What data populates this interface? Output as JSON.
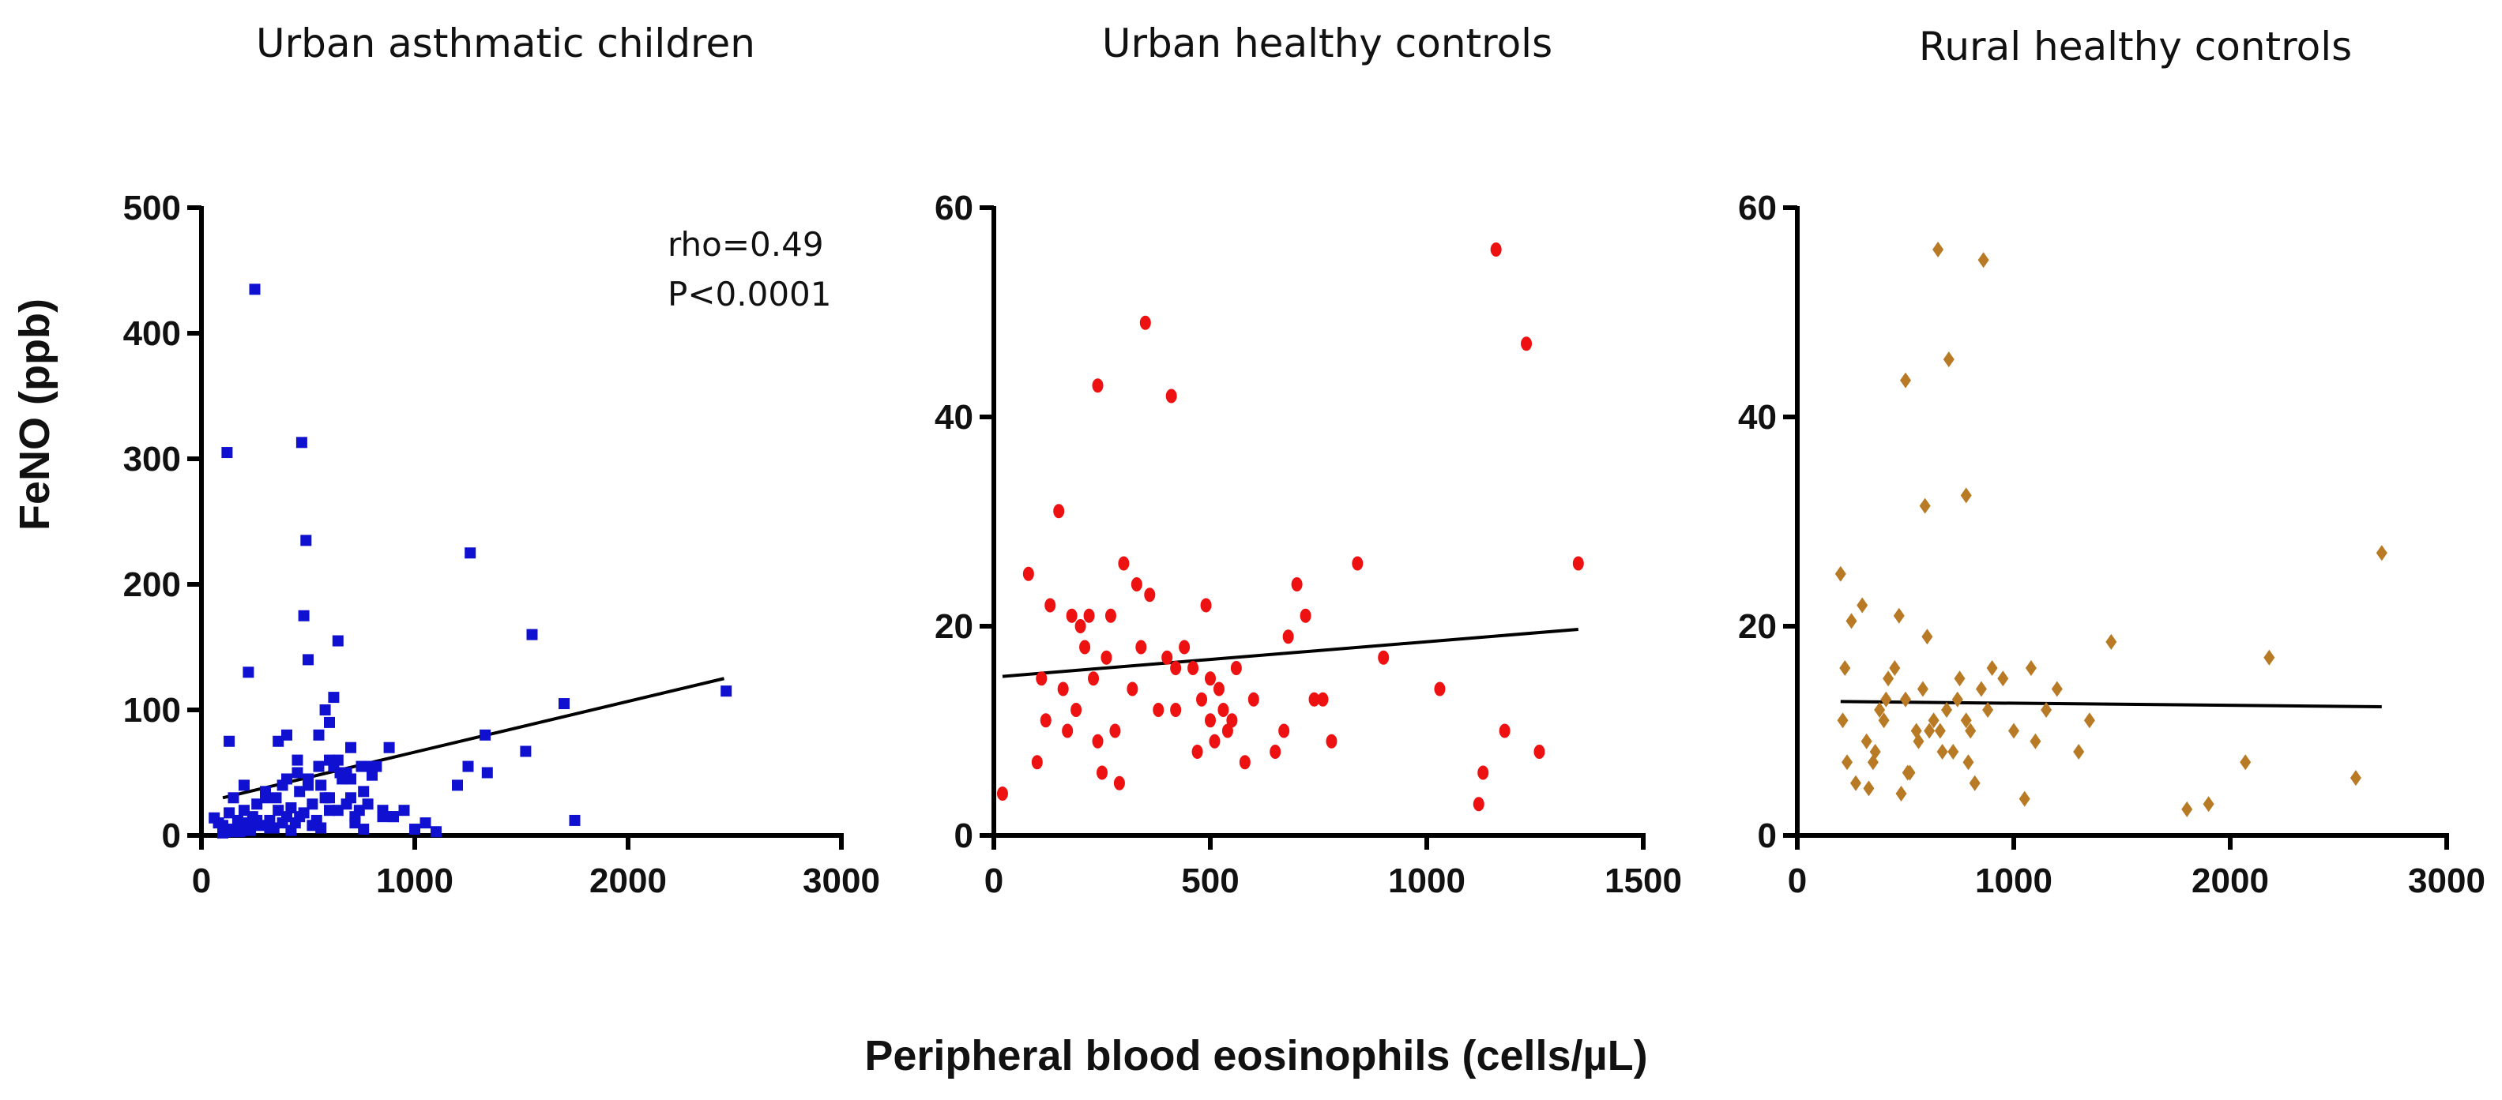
{
  "figure": {
    "ylabel": "FeNO (ppb)",
    "xlabel": "Peripheral blood eosinophils (cells/µL)"
  },
  "chart_data": [
    {
      "type": "scatter",
      "title": "Urban asthmatic children",
      "xlabel": "Peripheral blood eosinophils (cells/µL)",
      "ylabel": "FeNO (ppb)",
      "xlim": [
        0,
        3000
      ],
      "ylim": [
        0,
        500
      ],
      "xticks": [
        0,
        1000,
        2000,
        3000
      ],
      "yticks": [
        0,
        100,
        200,
        300,
        400,
        500
      ],
      "marker": "square",
      "color": "#1010d0",
      "annotations": [
        "rho=0.49",
        "P<0.0001"
      ],
      "trend_line": {
        "x": [
          100,
          2450
        ],
        "y": [
          30,
          125
        ]
      },
      "x": [
        250,
        120,
        470,
        490,
        480,
        640,
        1260,
        1550,
        1330,
        1700,
        1520,
        1250,
        1750,
        2460,
        60,
        80,
        100,
        110,
        130,
        150,
        170,
        190,
        200,
        210,
        230,
        240,
        260,
        280,
        300,
        320,
        340,
        360,
        380,
        400,
        420,
        440,
        460,
        480,
        500,
        520,
        540,
        560,
        580,
        600,
        620,
        640,
        660,
        680,
        700,
        720,
        740,
        760,
        780,
        800,
        820,
        850,
        880,
        900,
        950,
        1000,
        1050,
        1100,
        150,
        200,
        300,
        350,
        400,
        450,
        500,
        550,
        600,
        650,
        700,
        750,
        800,
        850,
        100,
        140,
        180,
        220,
        260,
        320,
        380,
        420,
        460,
        520,
        560,
        600,
        640,
        680,
        720,
        760,
        580,
        600,
        620,
        550,
        500,
        450,
        400,
        700,
        780,
        900,
        1200,
        1340,
        360,
        220,
        130
      ],
      "y": [
        435,
        305,
        313,
        235,
        175,
        155,
        225,
        160,
        80,
        105,
        67,
        55,
        12,
        115,
        14,
        10,
        8,
        5,
        18,
        3,
        12,
        7,
        20,
        10,
        4,
        15,
        25,
        8,
        30,
        12,
        6,
        20,
        40,
        15,
        22,
        10,
        35,
        18,
        45,
        25,
        12,
        40,
        30,
        20,
        55,
        60,
        45,
        50,
        30,
        15,
        20,
        35,
        25,
        48,
        55,
        15,
        70,
        15,
        20,
        5,
        10,
        3,
        30,
        40,
        35,
        30,
        45,
        50,
        40,
        55,
        60,
        50,
        45,
        55,
        50,
        20,
        2,
        5,
        3,
        8,
        12,
        6,
        10,
        4,
        15,
        8,
        6,
        30,
        20,
        25,
        10,
        5,
        100,
        90,
        110,
        80,
        140,
        60,
        80,
        70,
        55,
        15,
        40,
        50,
        75,
        130,
        75
      ]
    },
    {
      "type": "scatter",
      "title": "Urban healthy controls",
      "xlabel": "Peripheral blood eosinophils (cells/µL)",
      "ylabel": "FeNO (ppb)",
      "xlim": [
        0,
        1500
      ],
      "ylim": [
        0,
        60
      ],
      "xticks": [
        0,
        500,
        1000,
        1500
      ],
      "yticks": [
        0,
        20,
        40,
        60
      ],
      "marker": "circle",
      "color": "#ee1111",
      "trend_line": {
        "x": [
          20,
          1350
        ],
        "y": [
          15.2,
          19.7
        ]
      },
      "x": [
        20,
        80,
        100,
        110,
        120,
        130,
        150,
        160,
        170,
        180,
        190,
        200,
        210,
        220,
        230,
        240,
        250,
        260,
        270,
        280,
        290,
        300,
        320,
        330,
        340,
        350,
        360,
        380,
        400,
        410,
        420,
        440,
        460,
        480,
        490,
        500,
        510,
        520,
        530,
        540,
        560,
        580,
        650,
        670,
        680,
        700,
        720,
        740,
        760,
        780,
        840,
        900,
        1030,
        1120,
        1130,
        1160,
        1180,
        1230,
        1260,
        1350,
        240,
        420,
        470,
        500,
        550,
        600
      ],
      "y": [
        4,
        25,
        7,
        15,
        11,
        22,
        31,
        14,
        10,
        21,
        12,
        20,
        18,
        21,
        15,
        43,
        6,
        17,
        21,
        10,
        5,
        26,
        14,
        24,
        18,
        49,
        23,
        12,
        17,
        42,
        16,
        18,
        16,
        13,
        22,
        11,
        9,
        14,
        12,
        10,
        16,
        7,
        8,
        10,
        19,
        24,
        21,
        13,
        13,
        9,
        26,
        17,
        14,
        3,
        6,
        56,
        10,
        47,
        8,
        26,
        9,
        12,
        8,
        15,
        11,
        13
      ]
    },
    {
      "type": "scatter",
      "title": "Rural healthy controls",
      "xlabel": "Peripheral blood eosinophils (cells/µL)",
      "ylabel": "FeNO (ppb)",
      "xlim": [
        0,
        3000
      ],
      "ylim": [
        0,
        60
      ],
      "xticks": [
        0,
        1000,
        2000,
        3000
      ],
      "yticks": [
        0,
        20,
        40,
        60
      ],
      "marker": "diamond",
      "color": "#b87a25",
      "trend_line": {
        "x": [
          200,
          2700
        ],
        "y": [
          12.8,
          12.3
        ]
      },
      "x": [
        650,
        860,
        700,
        780,
        590,
        500,
        2700,
        200,
        220,
        250,
        270,
        300,
        320,
        350,
        380,
        400,
        420,
        450,
        470,
        500,
        520,
        550,
        580,
        600,
        630,
        660,
        690,
        720,
        750,
        780,
        800,
        820,
        850,
        880,
        900,
        950,
        1000,
        1050,
        1080,
        1100,
        1150,
        1200,
        1300,
        1350,
        1450,
        1800,
        1900,
        2070,
        2180,
        2580,
        210,
        230,
        330,
        360,
        410,
        480,
        510,
        560,
        610,
        670,
        740,
        790
      ],
      "y": [
        56,
        55,
        45.5,
        32.5,
        31.5,
        43.5,
        27,
        25,
        16,
        20.5,
        5,
        22,
        9,
        7,
        12,
        11,
        15,
        16,
        21,
        13,
        6,
        10,
        14,
        19,
        11,
        10,
        12,
        8,
        15,
        11,
        10,
        5,
        14,
        12,
        16,
        15,
        10,
        3.5,
        16,
        9,
        12,
        14,
        8,
        11,
        18.5,
        2.5,
        3,
        7,
        17,
        5.5,
        11,
        7,
        4.5,
        8,
        13,
        4,
        6,
        9,
        10,
        8,
        13,
        7
      ]
    }
  ]
}
